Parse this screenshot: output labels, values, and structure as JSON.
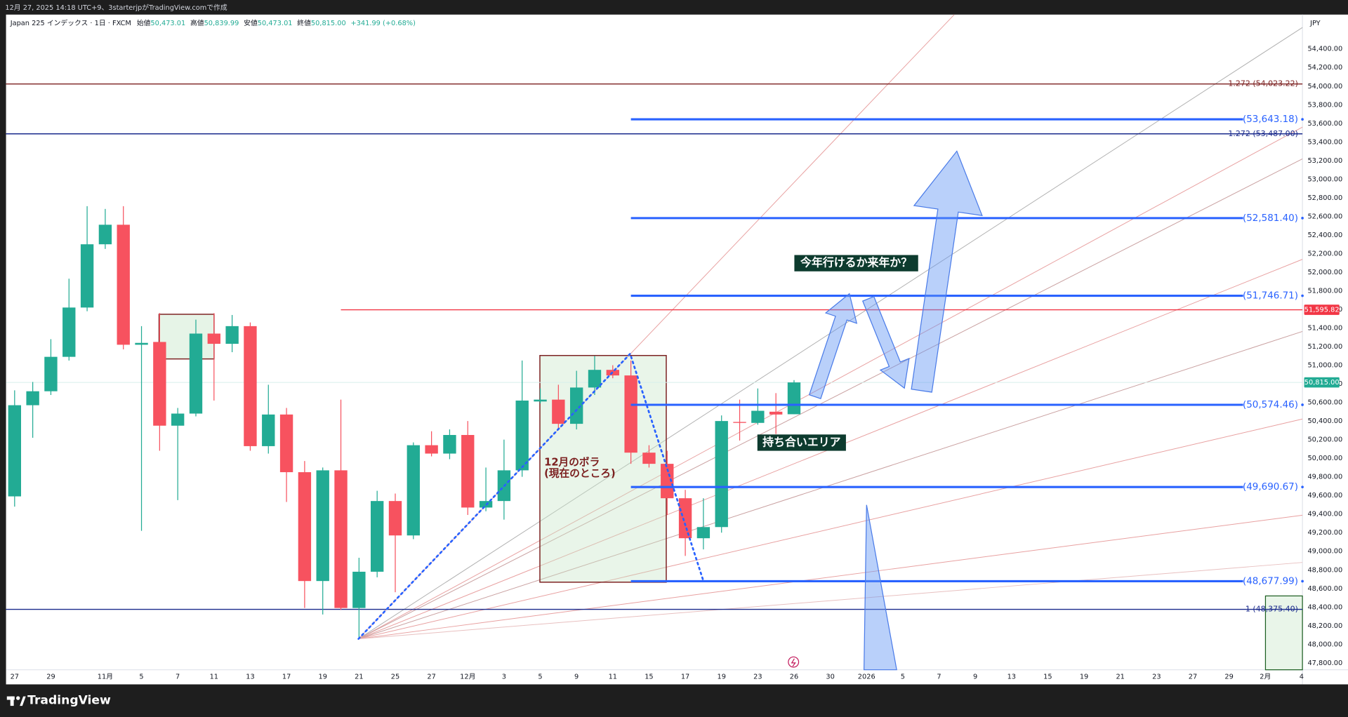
{
  "header": {
    "caption": "12月 27, 2025 14:18 UTC+9、3starterjpがTradingView.comで作成",
    "symbol": "Japan 225 インデックス · 1日 · FXCM",
    "open_label": "始値",
    "open": "50,473.01",
    "high_label": "高値",
    "high": "50,839.99",
    "low_label": "安値",
    "low": "50,473.01",
    "close_label": "終値",
    "close": "50,815.00",
    "change": "+341.99 (+0.68%)"
  },
  "chart_data": {
    "type": "candlestick",
    "currency": "JPY",
    "up_color": "#22ab94",
    "down_color": "#f7525f",
    "grid": false,
    "categories": [
      "27",
      null,
      "29",
      null,
      null,
      "11月",
      null,
      "5",
      null,
      "7",
      null,
      "11",
      null,
      "13",
      null,
      "17",
      null,
      "19",
      null,
      "21",
      null,
      "25",
      null,
      "27",
      null,
      "12月",
      null,
      "3",
      null,
      "5",
      null,
      "9",
      null,
      "11",
      null,
      "15",
      null,
      "17",
      null,
      "19",
      null,
      "23",
      null,
      "26",
      null,
      "30",
      null,
      "2026",
      null,
      "5",
      null,
      "7",
      null,
      "9",
      null,
      "13",
      null,
      "15",
      null,
      "19",
      null,
      "21",
      null,
      "23",
      null,
      "27",
      null,
      "29",
      null,
      "2月",
      null,
      "4"
    ],
    "open": [
      49590,
      50570,
      50720,
      51090,
      51620,
      52300,
      52510,
      51220,
      51250,
      50350,
      50480,
      51340,
      51230,
      51420,
      50130,
      50470,
      49850,
      48680,
      49870,
      48390,
      48780,
      49540,
      49170,
      50140,
      50050,
      50250,
      49470,
      49540,
      49870,
      50610,
      50630,
      50370,
      50760,
      50950,
      50890,
      50060,
      49940,
      49570,
      49140,
      49260,
      50390,
      50380,
      50500,
      50473.01,
      null,
      null,
      null,
      null,
      null,
      null,
      null,
      null,
      null,
      null,
      null,
      null,
      null,
      null,
      null,
      null,
      null,
      null,
      null,
      null,
      null,
      null,
      null,
      null,
      null,
      null,
      null,
      null
    ],
    "high": [
      50730,
      50820,
      51280,
      51930,
      52710,
      52680,
      52710,
      51420,
      51560,
      50540,
      51490,
      51560,
      51540,
      51460,
      50790,
      50540,
      49970,
      49900,
      50630,
      48930,
      49650,
      49620,
      50170,
      50290,
      50310,
      50400,
      49900,
      50200,
      51050,
      50750,
      50790,
      50940,
      51100,
      51000,
      51050,
      50140,
      50080,
      49660,
      49570,
      50460,
      50630,
      50750,
      50700,
      50839.99,
      null,
      null,
      null,
      null,
      null,
      null,
      null,
      null,
      null,
      null,
      null,
      null,
      null,
      null,
      null,
      null,
      null,
      null,
      null,
      null,
      null,
      null,
      null,
      null,
      null,
      null,
      null,
      null
    ],
    "low": [
      49480,
      50220,
      50680,
      51050,
      51580,
      52250,
      51170,
      49220,
      50080,
      49550,
      50450,
      50620,
      51140,
      50080,
      50050,
      49530,
      48390,
      48320,
      48370,
      48060,
      48720,
      48560,
      49130,
      50020,
      49990,
      49390,
      49430,
      49340,
      49800,
      50590,
      50310,
      50310,
      50680,
      50860,
      49940,
      49900,
      49390,
      48950,
      49020,
      49200,
      50190,
      50360,
      50260,
      50473.01,
      null,
      null,
      null,
      null,
      null,
      null,
      null,
      null,
      null,
      null,
      null,
      null,
      null,
      null,
      null,
      null,
      null,
      null,
      null,
      null,
      null,
      null,
      null,
      null,
      null,
      null,
      null,
      null
    ],
    "close": [
      50570,
      50720,
      51090,
      51620,
      52300,
      52510,
      51220,
      51240,
      50350,
      50480,
      51340,
      51230,
      51420,
      50130,
      50470,
      49850,
      48680,
      49870,
      48390,
      48780,
      49540,
      49170,
      50140,
      50050,
      50250,
      49470,
      49540,
      49870,
      50620,
      50630,
      50370,
      50760,
      50950,
      50890,
      50060,
      49940,
      49570,
      49140,
      49260,
      50400,
      50380,
      50510,
      50470,
      50815,
      null,
      null,
      null,
      null,
      null,
      null,
      null,
      null,
      null,
      null,
      null,
      null,
      null,
      null,
      null,
      null,
      null,
      null,
      null,
      null,
      null,
      null,
      null,
      null,
      null,
      null,
      null,
      null
    ],
    "ylim": [
      47726,
      54769
    ],
    "yticks": [
      {
        "value": 47800,
        "label": "47,800.00"
      },
      {
        "value": 48000,
        "label": "48,000.00"
      },
      {
        "value": 48200,
        "label": "48,200.00"
      },
      {
        "value": 48400,
        "label": "48,400.00"
      },
      {
        "value": 48600,
        "label": "48,600.00"
      },
      {
        "value": 48800,
        "label": "48,800.00"
      },
      {
        "value": 49000,
        "label": "49,000.00"
      },
      {
        "value": 49200,
        "label": "49,200.00"
      },
      {
        "value": 49400,
        "label": "49,400.00"
      },
      {
        "value": 49600,
        "label": "49,600.00"
      },
      {
        "value": 49800,
        "label": "49,800.00"
      },
      {
        "value": 50000,
        "label": "50,000.00"
      },
      {
        "value": 50200,
        "label": "50,200.00"
      },
      {
        "value": 50400,
        "label": "50,400.00"
      },
      {
        "value": 50600,
        "label": "50,600.00"
      },
      {
        "value": 50800,
        "label": "50,800.00"
      },
      {
        "value": 51000,
        "label": "51,000.00"
      },
      {
        "value": 51200,
        "label": "51,200.00"
      },
      {
        "value": 51400,
        "label": "51,400.00"
      },
      {
        "value": 51600,
        "label": "51,600.00"
      },
      {
        "value": 51800,
        "label": "51,800.00"
      },
      {
        "value": 52000,
        "label": "52,000.00"
      },
      {
        "value": 52200,
        "label": "52,200.00"
      },
      {
        "value": 52400,
        "label": "52,400.00"
      },
      {
        "value": 52600,
        "label": "52,600.00"
      },
      {
        "value": 52800,
        "label": "52,800.00"
      },
      {
        "value": 53000,
        "label": "53,000.00"
      },
      {
        "value": 53200,
        "label": "53,200.00"
      },
      {
        "value": 53400,
        "label": "53,400.00"
      },
      {
        "value": 53600,
        "label": "53,600.00"
      },
      {
        "value": 53800,
        "label": "53,800.00"
      },
      {
        "value": 54000,
        "label": "54,000.00"
      },
      {
        "value": 54200,
        "label": "54,200.00"
      },
      {
        "value": 54400,
        "label": "54,400.00"
      }
    ],
    "fib_levels": [
      {
        "value": 54023.22,
        "label": "1.272 (54,023.22)",
        "color": "#7b1f1f"
      },
      {
        "value": 53487.0,
        "label": "1.272 (53,487.00)",
        "color": "#1a2a8c"
      },
      {
        "value": 48375.4,
        "label": "1 (48,375.40)",
        "color": "#1a2a8c"
      }
    ],
    "projection_levels": [
      {
        "value": 53643.18,
        "label": "(53,643.18)"
      },
      {
        "value": 52581.4,
        "label": "(52,581.40)"
      },
      {
        "value": 51746.71,
        "label": "(51,746.71)"
      },
      {
        "value": 50574.46,
        "label": "(50,574.46)"
      },
      {
        "value": 49690.67,
        "label": "(49,690.67)"
      },
      {
        "value": 48677.99,
        "label": "(48,677.99)"
      }
    ],
    "projection_color": "#2962ff",
    "alert_line": {
      "value": 51595.82,
      "label": "51,595.82",
      "color": "#f23645"
    },
    "last_price": {
      "value": 50815,
      "label": "50,815.00"
    },
    "annotations": {
      "question": "今年行けるか来年か？",
      "range": "持ち合いエリア",
      "vol_title": "12月のボラ",
      "vol_note": "(現在のところ)"
    }
  },
  "footer": {
    "brand": "TradingView"
  }
}
